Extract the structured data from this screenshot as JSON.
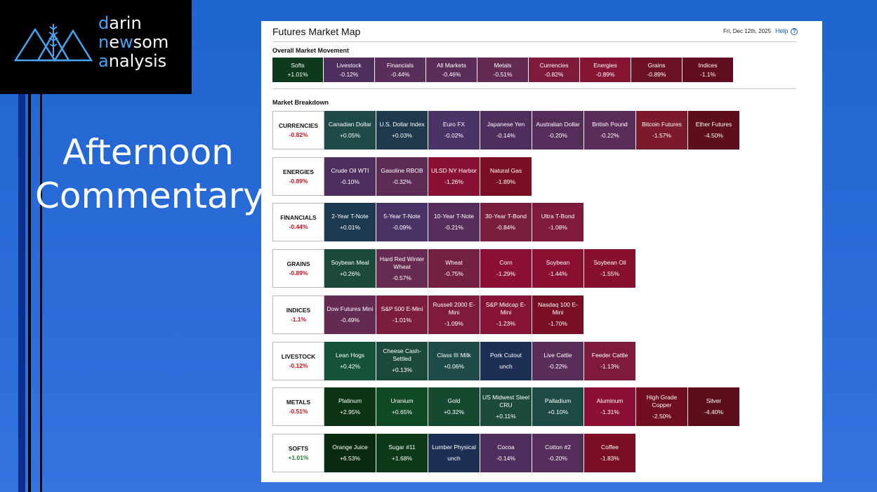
{
  "logo": {
    "line1_a": "d",
    "line1_b": "arin",
    "line2_a": "n",
    "line2_b": "e",
    "line2_c": "w",
    "line2_d": "som",
    "line3_a": "a",
    "line3_b": "nalysis",
    "accent": "#4aa3f0"
  },
  "headline": {
    "line1": "Afternoon",
    "line2": "Commentary"
  },
  "map": {
    "title": "Futures Market Map",
    "date": "Fri, Dec 12th, 2025",
    "help": "Help",
    "overall_title": "Overall Market Movement",
    "breakdown_title": "Market Breakdown",
    "overall": [
      {
        "name": "Softs",
        "pct": "+1.01%",
        "color": "#0d3a1c"
      },
      {
        "name": "Livestock",
        "pct": "-0.12%",
        "color": "#4f2d5c"
      },
      {
        "name": "Financials",
        "pct": "-0.44%",
        "color": "#5a2e5a"
      },
      {
        "name": "All Markets",
        "pct": "-0.46%",
        "color": "#5c2c58"
      },
      {
        "name": "Metals",
        "pct": "-0.51%",
        "color": "#632a52"
      },
      {
        "name": "Currencies",
        "pct": "-0.82%",
        "color": "#7e1a3a"
      },
      {
        "name": "Energies",
        "pct": "-0.89%",
        "color": "#851533"
      },
      {
        "name": "Grains",
        "pct": "-0.89%",
        "color": "#6c1226"
      },
      {
        "name": "Indices",
        "pct": "-1.1%",
        "color": "#620c1f"
      }
    ],
    "rows": [
      {
        "name": "CURRENCIES",
        "pct": "-0.82%",
        "pct_color": "#c2111c",
        "tiles": [
          {
            "name": "Canadian Dollar",
            "pct": "+0.05%",
            "color": "#1e4a48"
          },
          {
            "name": "U.S. Dollar Index",
            "pct": "+0.03%",
            "color": "#1e3a4c"
          },
          {
            "name": "Euro FX",
            "pct": "-0.02%",
            "color": "#4a3366"
          },
          {
            "name": "Japanese Yen",
            "pct": "-0.14%",
            "color": "#4f2d5c"
          },
          {
            "name": "Australian Dollar",
            "pct": "-0.20%",
            "color": "#552d5a"
          },
          {
            "name": "British Pound",
            "pct": "-0.22%",
            "color": "#5a2d58"
          },
          {
            "name": "Bitcoin Futures",
            "pct": "-1.57%",
            "color": "#7a1a2c"
          },
          {
            "name": "Ether Futures",
            "pct": "-4.50%",
            "color": "#5c0e1a"
          }
        ]
      },
      {
        "name": "ENERGIES",
        "pct": "-0.89%",
        "pct_color": "#c2111c",
        "tiles": [
          {
            "name": "Crude Oil WTI",
            "pct": "-0.10%",
            "color": "#4d2e5e"
          },
          {
            "name": "Gasoline RBOB",
            "pct": "-0.32%",
            "color": "#5c2c57"
          },
          {
            "name": "ULSD NY Harbor",
            "pct": "-1.26%",
            "color": "#8a1034"
          },
          {
            "name": "Natural Gas",
            "pct": "-1.89%",
            "color": "#7a0e22"
          }
        ]
      },
      {
        "name": "FINANCIALS",
        "pct": "-0.44%",
        "pct_color": "#c2111c",
        "tiles": [
          {
            "name": "2-Year T-Note",
            "pct": "+0.01%",
            "color": "#1e3a50"
          },
          {
            "name": "5-Year T-Note",
            "pct": "-0.09%",
            "color": "#4a3366"
          },
          {
            "name": "10-Year T-Note",
            "pct": "-0.21%",
            "color": "#562d5b"
          },
          {
            "name": "30-Year T-Bond",
            "pct": "-0.84%",
            "color": "#7a1e40"
          },
          {
            "name": "Ultra T-Bond",
            "pct": "-1.08%",
            "color": "#7e1a3c"
          }
        ]
      },
      {
        "name": "GRAINS",
        "pct": "-0.89%",
        "pct_color": "#c2111c",
        "tiles": [
          {
            "name": "Soybean Meal",
            "pct": "+0.26%",
            "color": "#1c4a3a"
          },
          {
            "name": "Hard Red Winter Wheat",
            "pct": "-0.57%",
            "color": "#672a50"
          },
          {
            "name": "Wheat",
            "pct": "-0.75%",
            "color": "#742043"
          },
          {
            "name": "Corn",
            "pct": "-1.29%",
            "color": "#8c1035"
          },
          {
            "name": "Soybean",
            "pct": "-1.44%",
            "color": "#8a0f30"
          },
          {
            "name": "Soybean Oil",
            "pct": "-1.55%",
            "color": "#86102d"
          }
        ]
      },
      {
        "name": "INDICES",
        "pct": "-1.1%",
        "pct_color": "#c2111c",
        "tiles": [
          {
            "name": "Dow Futures Mini",
            "pct": "-0.49%",
            "color": "#632a52"
          },
          {
            "name": "S&P 500 E-Mini",
            "pct": "-1.01%",
            "color": "#7c1c3e"
          },
          {
            "name": "Russell 2000 E-Mini",
            "pct": "-1.09%",
            "color": "#7e1a3c"
          },
          {
            "name": "S&P Midcap E-Mini",
            "pct": "-1.23%",
            "color": "#861436"
          },
          {
            "name": "Nasdaq 100 E-Mini",
            "pct": "-1.70%",
            "color": "#780f24"
          }
        ]
      },
      {
        "name": "LIVESTOCK",
        "pct": "-0.12%",
        "pct_color": "#c2111c",
        "tiles": [
          {
            "name": "Lean Hogs",
            "pct": "+0.42%",
            "color": "#15523a"
          },
          {
            "name": "Cheese Cash-Settled",
            "pct": "+0.13%",
            "color": "#1b4a3c"
          },
          {
            "name": "Class III Milk",
            "pct": "+0.06%",
            "color": "#1e4a48"
          },
          {
            "name": "Pork Cutout",
            "pct": "unch",
            "color": "#1e2f55"
          },
          {
            "name": "Live Cattle",
            "pct": "-0.22%",
            "color": "#582d5a"
          },
          {
            "name": "Feeder Cattle",
            "pct": "-1.13%",
            "color": "#7e1a3c"
          }
        ]
      },
      {
        "name": "METALS",
        "pct": "-0.51%",
        "pct_color": "#c2111c",
        "tiles": [
          {
            "name": "Platinum",
            "pct": "+2.95%",
            "color": "#0c3415"
          },
          {
            "name": "Uranium",
            "pct": "+0.65%",
            "color": "#104a24"
          },
          {
            "name": "Gold",
            "pct": "+0.32%",
            "color": "#164a30"
          },
          {
            "name": "US Midwest Steel CRU",
            "pct": "+0.11%",
            "color": "#1c4a3c"
          },
          {
            "name": "Palladium",
            "pct": "+0.10%",
            "color": "#1d4a44"
          },
          {
            "name": "Aluminum",
            "pct": "-1.31%",
            "color": "#8c1035"
          },
          {
            "name": "High Grade Copper",
            "pct": "-2.50%",
            "color": "#700d20"
          },
          {
            "name": "Silver",
            "pct": "-4.40%",
            "color": "#5c0e1a"
          }
        ]
      },
      {
        "name": "SOFTS",
        "pct": "+1.01%",
        "pct_color": "#1a7a2e",
        "tiles": [
          {
            "name": "Orange Juice",
            "pct": "+6.53%",
            "color": "#092c10"
          },
          {
            "name": "Sugar #11",
            "pct": "+1.68%",
            "color": "#0c3a18"
          },
          {
            "name": "Lumber Physical",
            "pct": "unch",
            "color": "#1e2f55"
          },
          {
            "name": "Cocoa",
            "pct": "-0.14%",
            "color": "#4f2d5c"
          },
          {
            "name": "Cotton #2",
            "pct": "-0.20%",
            "color": "#552d5a"
          },
          {
            "name": "Coffee",
            "pct": "-1.83%",
            "color": "#7a0e22"
          }
        ]
      }
    ]
  }
}
